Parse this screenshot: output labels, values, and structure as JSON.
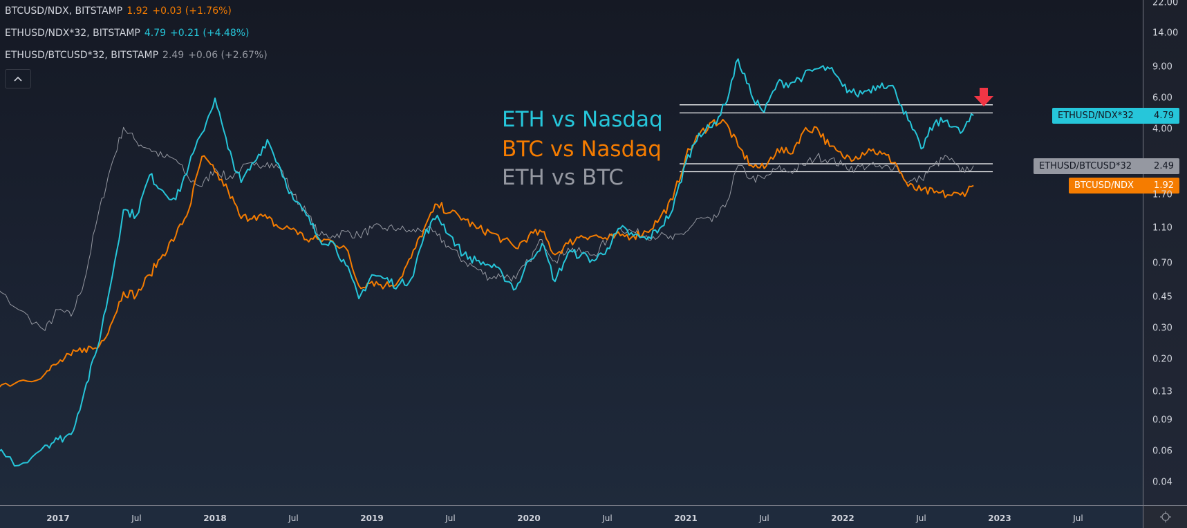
{
  "legend": [
    {
      "symbol": "BTCUSD/NDX, BITSTAMP",
      "value": "1.92",
      "change": "+0.03 (+1.76%)",
      "color": "#f57c00"
    },
    {
      "symbol": "ETHUSD/NDX*32, BITSTAMP",
      "value": "4.79",
      "change": "+0.21 (+4.48%)",
      "color": "#26c6da"
    },
    {
      "symbol": "ETHUSD/BTCUSD*32, BITSTAMP",
      "value": "2.49",
      "change": "+0.06 (+2.67%)",
      "color": "#9598a1"
    }
  ],
  "collapse_icon": "chevron-up-icon",
  "settings_icon": "gear-icon",
  "chart_data": {
    "type": "line",
    "yscale": "log",
    "ylim": [
      0.04,
      22
    ],
    "yticks": [
      "22.00",
      "14.00",
      "9.00",
      "6.00",
      "4.00",
      "1.70",
      "1.10",
      "0.70",
      "0.45",
      "0.30",
      "0.20",
      "0.13",
      "0.09",
      "0.06",
      "0.04"
    ],
    "xticks": [
      {
        "label": "2017",
        "t": 2017.0,
        "year": true
      },
      {
        "label": "Jul",
        "t": 2017.5
      },
      {
        "label": "2018",
        "t": 2018.0,
        "year": true
      },
      {
        "label": "Jul",
        "t": 2018.5
      },
      {
        "label": "2019",
        "t": 2019.0,
        "year": true
      },
      {
        "label": "Jul",
        "t": 2019.5
      },
      {
        "label": "2020",
        "t": 2020.0,
        "year": true
      },
      {
        "label": "Jul",
        "t": 2020.5
      },
      {
        "label": "2021",
        "t": 2021.0,
        "year": true
      },
      {
        "label": "Jul",
        "t": 2021.5
      },
      {
        "label": "2022",
        "t": 2022.0,
        "year": true
      },
      {
        "label": "Jul",
        "t": 2022.5
      },
      {
        "label": "2023",
        "t": 2023.0,
        "year": true
      },
      {
        "label": "Jul",
        "t": 2023.5
      }
    ],
    "x": [
      "2016-04",
      "2016-06",
      "2016-08",
      "2016-10",
      "2016-12",
      "2017-01",
      "2017-02",
      "2017-03",
      "2017-04",
      "2017-05",
      "2017-06",
      "2017-07",
      "2017-08",
      "2017-09",
      "2017-10",
      "2017-11",
      "2017-12",
      "2018-01",
      "2018-02",
      "2018-03",
      "2018-04",
      "2018-05",
      "2018-06",
      "2018-07",
      "2018-08",
      "2018-09",
      "2018-10",
      "2018-11",
      "2018-12",
      "2019-01",
      "2019-02",
      "2019-03",
      "2019-04",
      "2019-05",
      "2019-06",
      "2019-07",
      "2019-08",
      "2019-09",
      "2019-10",
      "2019-11",
      "2019-12",
      "2020-01",
      "2020-02",
      "2020-03",
      "2020-04",
      "2020-05",
      "2020-06",
      "2020-07",
      "2020-08",
      "2020-09",
      "2020-10",
      "2020-11",
      "2020-12",
      "2021-01",
      "2021-02",
      "2021-03",
      "2021-04",
      "2021-05",
      "2021-06",
      "2021-07",
      "2021-08",
      "2021-09",
      "2021-10",
      "2021-11",
      "2021-12",
      "2022-01",
      "2022-02",
      "2022-03",
      "2022-04",
      "2022-05",
      "2022-06",
      "2022-07",
      "2022-08",
      "2022-09",
      "2022-10",
      "2022-11"
    ],
    "series": [
      {
        "name": "ETHUSD/BTCUSD*32",
        "color": "#9598a1",
        "width": 1,
        "values": [
          0.68,
          0.72,
          0.52,
          0.38,
          0.29,
          0.38,
          0.35,
          0.55,
          1.25,
          2.4,
          4.1,
          3.4,
          3.1,
          2.8,
          2.7,
          2.1,
          1.9,
          2.4,
          2.1,
          2.4,
          2.5,
          2.6,
          2.4,
          1.7,
          1.35,
          1.0,
          1.0,
          1.05,
          1.0,
          1.1,
          1.1,
          1.1,
          1.05,
          1.1,
          1.0,
          0.85,
          0.72,
          0.65,
          0.58,
          0.6,
          0.57,
          0.72,
          0.95,
          0.72,
          0.85,
          0.8,
          0.78,
          0.95,
          1.1,
          1.05,
          1.0,
          1.0,
          0.95,
          1.05,
          1.25,
          1.2,
          1.45,
          2.5,
          2.1,
          2.1,
          2.4,
          2.3,
          2.5,
          2.8,
          2.7,
          2.5,
          2.4,
          2.5,
          2.4,
          2.5,
          2.0,
          2.1,
          2.5,
          2.8,
          2.3,
          2.49
        ]
      },
      {
        "name": "BTCUSD/NDX",
        "color": "#f57c00",
        "width": 2,
        "values": [
          0.13,
          0.135,
          0.14,
          0.15,
          0.165,
          0.19,
          0.21,
          0.23,
          0.23,
          0.31,
          0.48,
          0.46,
          0.6,
          0.78,
          1.0,
          1.4,
          2.8,
          2.3,
          1.8,
          1.25,
          1.3,
          1.25,
          1.1,
          1.1,
          0.95,
          0.95,
          0.93,
          0.85,
          0.52,
          0.55,
          0.52,
          0.55,
          0.75,
          1.1,
          1.5,
          1.35,
          1.25,
          1.1,
          1.05,
          0.95,
          0.85,
          1.0,
          1.05,
          0.78,
          0.9,
          1.0,
          1.0,
          0.95,
          1.0,
          1.0,
          1.05,
          1.25,
          1.6,
          2.8,
          3.7,
          4.4,
          4.4,
          3.2,
          2.5,
          2.4,
          3.1,
          2.9,
          3.9,
          4.1,
          3.2,
          2.8,
          2.8,
          3.1,
          2.9,
          2.6,
          1.9,
          1.8,
          1.75,
          1.7,
          1.7,
          1.92
        ]
      },
      {
        "name": "ETHUSD/NDX*32",
        "color": "#26c6da",
        "width": 2,
        "values": [
          0.075,
          0.08,
          0.065,
          0.05,
          0.065,
          0.07,
          0.075,
          0.13,
          0.23,
          0.52,
          1.4,
          1.3,
          2.2,
          1.8,
          1.6,
          2.5,
          3.8,
          6.0,
          3.1,
          2.0,
          2.6,
          3.5,
          2.4,
          1.6,
          1.3,
          0.95,
          0.92,
          0.68,
          0.44,
          0.6,
          0.57,
          0.52,
          0.57,
          1.0,
          1.3,
          1.0,
          0.78,
          0.72,
          0.68,
          0.6,
          0.5,
          0.72,
          0.9,
          0.55,
          0.8,
          0.78,
          0.72,
          0.85,
          1.1,
          1.0,
          0.95,
          1.1,
          1.4,
          2.6,
          3.8,
          4.1,
          5.5,
          10.0,
          6.3,
          5.0,
          7.3,
          7.3,
          8.0,
          8.8,
          8.8,
          7.0,
          6.3,
          6.7,
          7.3,
          6.7,
          4.5,
          3.1,
          4.3,
          4.5,
          3.8,
          4.79
        ]
      }
    ],
    "hlines": [
      5.5,
      4.95,
      2.55,
      2.3
    ],
    "annotations": [
      {
        "text": "ETH vs Nasdaq",
        "color": "#26c6da"
      },
      {
        "text": "BTC vs Nasdaq",
        "color": "#f57c00"
      },
      {
        "text": "ETH vs BTC",
        "color": "#9598a1"
      }
    ],
    "arrow": {
      "color": "#f23645",
      "direction": "down"
    },
    "price_tags": [
      {
        "label": "ETHUSD/NDX*32",
        "value": "4.79",
        "bg": "#26c6da",
        "fg": "#131722"
      },
      {
        "label": "ETHUSD/BTCUSD*32",
        "value": "2.49",
        "bg": "#9598a1",
        "fg": "#131722"
      },
      {
        "label": "BTCUSD/NDX",
        "value": "1.92",
        "bg": "#f57c00",
        "fg": "#ffffff"
      }
    ]
  }
}
